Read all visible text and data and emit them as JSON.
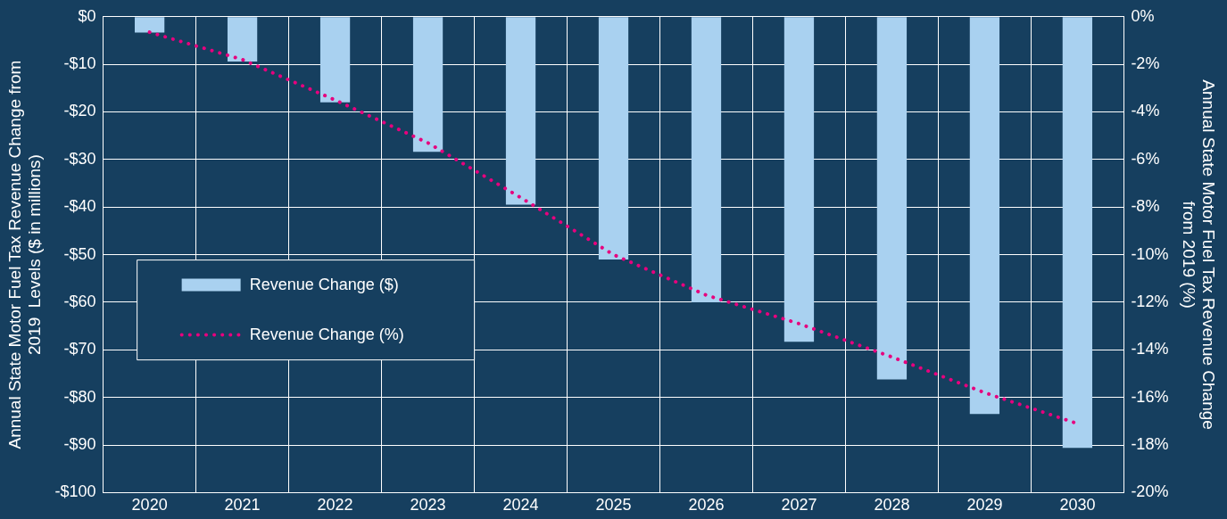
{
  "chart_data": {
    "type": "bar",
    "ylabel": "Annual State Motor Fuel Tax Revenue Change from 2019  Levels ($ in millions)",
    "y2label": "Annual State Motor Fuel Tax Revenue Change from 2019 (%)",
    "categories": [
      "2020",
      "2021",
      "2022",
      "2023",
      "2024",
      "2025",
      "2026",
      "2027",
      "2028",
      "2029",
      "2030"
    ],
    "series": [
      {
        "name": "Revenue Change ($)",
        "color": "#a9d1f0",
        "values": [
          -3.3,
          -9.4,
          -18,
          -28.4,
          -39.5,
          -51,
          -60,
          -68.3,
          -76.2,
          -83.5,
          -90.6
        ]
      },
      {
        "name": "Revenue Change (%)",
        "type": "line",
        "axis": "y2",
        "color": "#e6007e",
        "line_style": "dotted",
        "marker": "none",
        "values": [
          -0.65,
          -1.8,
          -3.5,
          -5.3,
          -7.6,
          -10,
          -11.7,
          -12.9,
          -14.3,
          -15.8,
          -17.1
        ]
      }
    ],
    "ylim": [
      -100,
      0
    ],
    "yticks": [
      {
        "value": -100,
        "label": "-$100"
      },
      {
        "value": -90,
        "label": "-$90"
      },
      {
        "value": -80,
        "label": "-$80"
      },
      {
        "value": -70,
        "label": "-$70"
      },
      {
        "value": -60,
        "label": "-$60"
      },
      {
        "value": -50,
        "label": "-$50"
      },
      {
        "value": -40,
        "label": "-$40"
      },
      {
        "value": -30,
        "label": "-$30"
      },
      {
        "value": -20,
        "label": "-$20"
      },
      {
        "value": -10,
        "label": "-$10"
      },
      {
        "value": 0,
        "label": "$0"
      }
    ],
    "y2lim": [
      -20,
      0
    ],
    "y2ticks": [
      {
        "value": -20,
        "label": "-20%"
      },
      {
        "value": -18,
        "label": "-18%"
      },
      {
        "value": -16,
        "label": "-16%"
      },
      {
        "value": -14,
        "label": "-14%"
      },
      {
        "value": -12,
        "label": "-12%"
      },
      {
        "value": -10,
        "label": "-10%"
      },
      {
        "value": -8,
        "label": "-8%"
      },
      {
        "value": -6,
        "label": "-6%"
      },
      {
        "value": -4,
        "label": "-4%"
      },
      {
        "value": -2,
        "label": "-2%"
      },
      {
        "value": 0,
        "label": "0%"
      }
    ],
    "grid": true,
    "legend": "left"
  }
}
